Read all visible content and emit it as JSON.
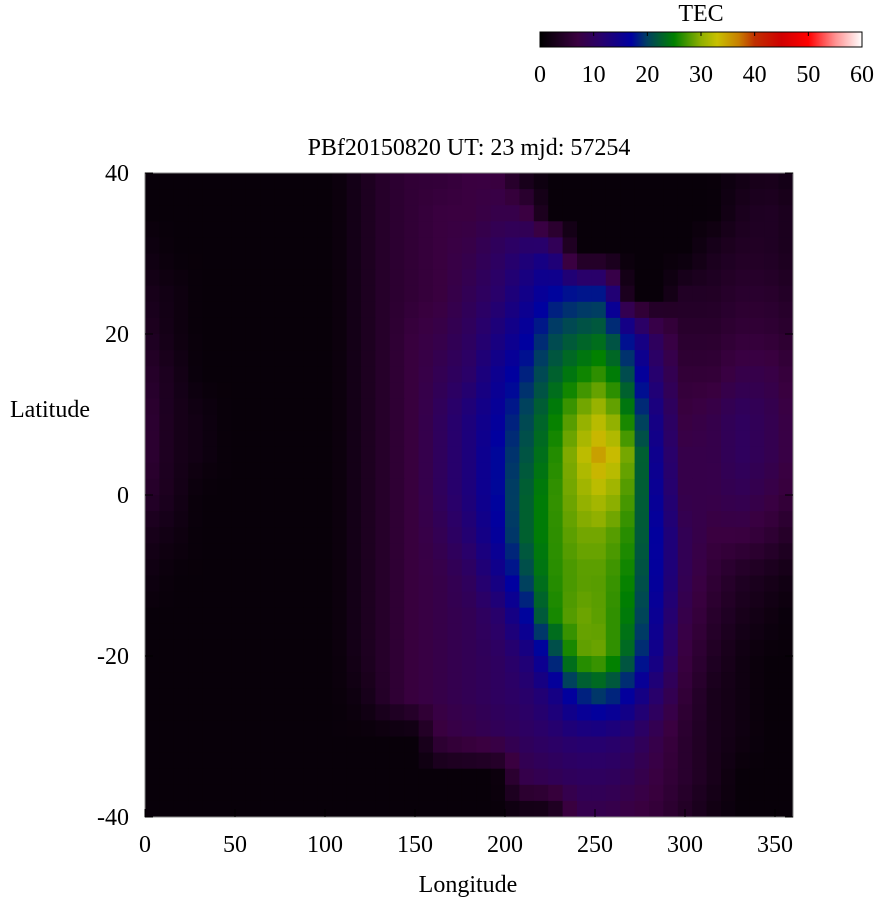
{
  "chart_data": {
    "type": "heatmap",
    "title": "PBf20150820  UT: 23  mjd: 57254",
    "xlabel": "Longitude",
    "ylabel": "Latitude",
    "xlim": [
      0,
      360
    ],
    "ylim": [
      -40,
      40
    ],
    "xticks": [
      "0",
      "50",
      "100",
      "150",
      "200",
      "250",
      "300",
      "350"
    ],
    "yticks": [
      "40",
      "20",
      "0",
      "-20",
      "-40"
    ],
    "colorbar": {
      "label": "TEC",
      "range": [
        0,
        60
      ],
      "ticks": [
        "0",
        "10",
        "20",
        "30",
        "40",
        "50",
        "60"
      ],
      "colormap": [
        {
          "value": 0,
          "color": "#000000"
        },
        {
          "value": 7,
          "color": "#3a0040"
        },
        {
          "value": 11,
          "color": "#2a0068"
        },
        {
          "value": 17,
          "color": "#0000a0"
        },
        {
          "value": 20,
          "color": "#004060"
        },
        {
          "value": 25,
          "color": "#008000"
        },
        {
          "value": 30,
          "color": "#90b000"
        },
        {
          "value": 33,
          "color": "#c8c000"
        },
        {
          "value": 37,
          "color": "#c88000"
        },
        {
          "value": 40,
          "color": "#c03000"
        },
        {
          "value": 45,
          "color": "#d00000"
        },
        {
          "value": 50,
          "color": "#ff0000"
        },
        {
          "value": 55,
          "color": "#ff9090"
        },
        {
          "value": 60,
          "color": "#ffffff"
        }
      ]
    },
    "lon": [
      0,
      15,
      30,
      45,
      60,
      75,
      90,
      105,
      120,
      135,
      150,
      165,
      180,
      195,
      210,
      225,
      240,
      255,
      270,
      285,
      300,
      315,
      330,
      345,
      360
    ],
    "lat": [
      40,
      35,
      30,
      25,
      20,
      15,
      10,
      5,
      0,
      -5,
      -10,
      -15,
      -20,
      -25,
      -30,
      -35,
      -40
    ],
    "values": [
      [
        1,
        1,
        1,
        1,
        1,
        1,
        1,
        1,
        3,
        5,
        6,
        6,
        7,
        7,
        2,
        1,
        1,
        1,
        1,
        1,
        1,
        1,
        2,
        3,
        2
      ],
      [
        1,
        1,
        1,
        1,
        1,
        1,
        1,
        1,
        3,
        5,
        6,
        7,
        7,
        8,
        8,
        1,
        1,
        1,
        1,
        1,
        1,
        1,
        3,
        4,
        3
      ],
      [
        2,
        1,
        1,
        1,
        1,
        1,
        1,
        1,
        3,
        5,
        6,
        7,
        8,
        10,
        12,
        14,
        1,
        1,
        1,
        1,
        1,
        3,
        4,
        4,
        3
      ],
      [
        3,
        2,
        1,
        1,
        1,
        1,
        1,
        1,
        3,
        5,
        6,
        7,
        9,
        11,
        14,
        17,
        18,
        18,
        1,
        1,
        4,
        4,
        5,
        5,
        4
      ],
      [
        4,
        2,
        1,
        1,
        1,
        1,
        1,
        1,
        3,
        5,
        7,
        8,
        10,
        13,
        16,
        20,
        22,
        23,
        16,
        9,
        5,
        5,
        6,
        6,
        5
      ],
      [
        5,
        3,
        1,
        1,
        1,
        1,
        1,
        1,
        3,
        5,
        7,
        9,
        11,
        15,
        18,
        22,
        25,
        27,
        20,
        11,
        6,
        6,
        8,
        8,
        6
      ],
      [
        6,
        3,
        2,
        1,
        1,
        1,
        1,
        1,
        3,
        5,
        7,
        10,
        13,
        16,
        20,
        24,
        29,
        32,
        24,
        13,
        7,
        8,
        10,
        9,
        7
      ],
      [
        6,
        3,
        2,
        1,
        1,
        1,
        1,
        1,
        3,
        5,
        7,
        10,
        13,
        17,
        21,
        25,
        31,
        36,
        28,
        14,
        8,
        8,
        10,
        9,
        7
      ],
      [
        5,
        3,
        1,
        1,
        1,
        1,
        1,
        1,
        3,
        5,
        7,
        10,
        13,
        17,
        22,
        26,
        30,
        32,
        27,
        15,
        8,
        8,
        9,
        8,
        6
      ],
      [
        3,
        2,
        1,
        1,
        1,
        1,
        1,
        1,
        3,
        5,
        7,
        9,
        12,
        16,
        22,
        26,
        29,
        29,
        26,
        16,
        9,
        7,
        7,
        6,
        4
      ],
      [
        2,
        1,
        1,
        1,
        1,
        1,
        1,
        1,
        3,
        5,
        7,
        8,
        10,
        14,
        20,
        26,
        28,
        28,
        25,
        16,
        9,
        6,
        4,
        3,
        2
      ],
      [
        1,
        1,
        1,
        1,
        1,
        1,
        1,
        1,
        3,
        5,
        7,
        8,
        9,
        11,
        16,
        25,
        29,
        28,
        24,
        15,
        8,
        5,
        3,
        2,
        1
      ],
      [
        1,
        1,
        1,
        1,
        1,
        1,
        1,
        1,
        3,
        5,
        7,
        8,
        9,
        10,
        12,
        18,
        28,
        29,
        22,
        14,
        7,
        4,
        2,
        1,
        1
      ],
      [
        1,
        1,
        1,
        1,
        1,
        1,
        1,
        1,
        2,
        5,
        7,
        8,
        9,
        10,
        11,
        13,
        18,
        20,
        16,
        11,
        6,
        3,
        2,
        1,
        1
      ],
      [
        1,
        1,
        1,
        1,
        1,
        1,
        1,
        1,
        1,
        1,
        1,
        7,
        8,
        9,
        10,
        11,
        12,
        12,
        11,
        8,
        5,
        3,
        2,
        1,
        1
      ],
      [
        1,
        1,
        1,
        1,
        1,
        1,
        1,
        1,
        1,
        1,
        1,
        1,
        1,
        1,
        8,
        9,
        10,
        10,
        9,
        7,
        5,
        3,
        1,
        1,
        1
      ],
      [
        1,
        1,
        1,
        1,
        1,
        1,
        1,
        1,
        1,
        1,
        1,
        1,
        1,
        1,
        1,
        1,
        8,
        8,
        7,
        6,
        4,
        2,
        1,
        1,
        1
      ]
    ]
  }
}
